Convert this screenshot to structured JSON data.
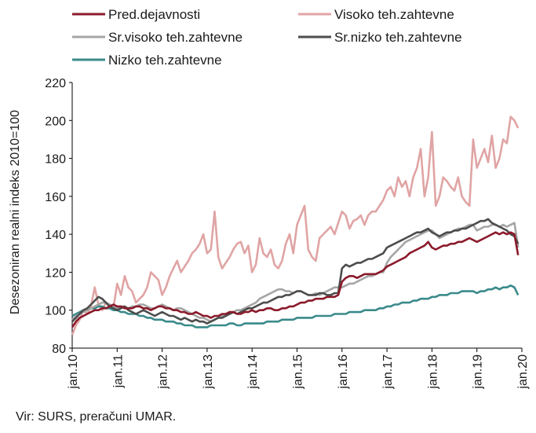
{
  "chart_data": {
    "type": "line",
    "title": "",
    "ylabel": "Desezoniran realni indeks 2010=100",
    "xlabel": "",
    "ylim": [
      80,
      220
    ],
    "yticks": [
      80,
      100,
      120,
      140,
      160,
      180,
      200,
      220
    ],
    "x_tick_labels": [
      "jan.10",
      "jan.11",
      "jan.12",
      "jan.13",
      "jan.14",
      "jan.15",
      "jan.16",
      "jan.17",
      "jan.18",
      "jan.19",
      "jan.20"
    ],
    "x_start": "jan.10",
    "grid": false,
    "legend_position": "top",
    "source": "Vir: SURS, preračuni UMAR.",
    "series": [
      {
        "name": "Pred.dejavnosti",
        "color": "#8b1a2b",
        "values": [
          91,
          94,
          96,
          97,
          98,
          99,
          100,
          100,
          101,
          101,
          102,
          103,
          102,
          102,
          101,
          101,
          101,
          102,
          102,
          101,
          101,
          100,
          101,
          102,
          102,
          101,
          101,
          100,
          100,
          99,
          99,
          98,
          98,
          99,
          98,
          97,
          97,
          96,
          97,
          97,
          98,
          98,
          99,
          99,
          98,
          98,
          99,
          99,
          100,
          99,
          100,
          100,
          101,
          101,
          100,
          100,
          101,
          101,
          102,
          102,
          103,
          104,
          104,
          105,
          105,
          106,
          106,
          106,
          107,
          107,
          107,
          108,
          115,
          117,
          118,
          118,
          117,
          118,
          119,
          119,
          119,
          119,
          120,
          121,
          123,
          124,
          125,
          126,
          127,
          128,
          130,
          131,
          132,
          133,
          134,
          136,
          133,
          132,
          133,
          134,
          134,
          135,
          135,
          136,
          136,
          137,
          138,
          137,
          136,
          137,
          138,
          139,
          140,
          141,
          140,
          141,
          140,
          141,
          140,
          129
        ]
      },
      {
        "name": "Visoko teh.zahtevne",
        "color": "#e0a4a4",
        "values": [
          87,
          92,
          95,
          100,
          98,
          102,
          112,
          103,
          100,
          104,
          102,
          101,
          114,
          108,
          118,
          112,
          110,
          104,
          106,
          108,
          112,
          120,
          118,
          116,
          108,
          112,
          118,
          122,
          126,
          120,
          123,
          126,
          130,
          132,
          135,
          140,
          130,
          132,
          152,
          128,
          122,
          125,
          128,
          132,
          135,
          136,
          130,
          134,
          120,
          124,
          138,
          130,
          128,
          132,
          124,
          122,
          126,
          135,
          140,
          130,
          145,
          150,
          155,
          132,
          128,
          126,
          138,
          140,
          142,
          144,
          140,
          146,
          152,
          150,
          143,
          147,
          148,
          150,
          145,
          150,
          152,
          152,
          155,
          158,
          163,
          165,
          160,
          170,
          165,
          168,
          160,
          170,
          175,
          185,
          160,
          170,
          194,
          155,
          160,
          170,
          168,
          165,
          163,
          170,
          160,
          157,
          155,
          190,
          175,
          180,
          185,
          178,
          192,
          175,
          180,
          190,
          188,
          202,
          200,
          196
        ]
      },
      {
        "name": "Sr.visoko teh.zahtevne",
        "color": "#a6a6a6",
        "values": [
          95,
          97,
          98,
          99,
          100,
          101,
          102,
          103,
          104,
          104,
          103,
          102,
          101,
          102,
          102,
          101,
          102,
          102,
          103,
          103,
          102,
          101,
          101,
          102,
          103,
          102,
          101,
          100,
          101,
          101,
          100,
          99,
          98,
          97,
          96,
          96,
          95,
          94,
          95,
          96,
          97,
          98,
          98,
          99,
          100,
          100,
          101,
          102,
          103,
          104,
          106,
          107,
          108,
          109,
          110,
          111,
          111,
          110,
          110,
          109,
          110,
          110,
          109,
          108,
          108,
          109,
          108,
          109,
          110,
          111,
          112,
          112,
          112,
          113,
          114,
          114,
          115,
          116,
          117,
          118,
          118,
          119,
          120,
          120,
          125,
          128,
          130,
          132,
          134,
          136,
          137,
          138,
          139,
          140,
          141,
          142,
          142,
          140,
          138,
          139,
          140,
          141,
          142,
          143,
          143,
          144,
          145,
          145,
          142,
          143,
          144,
          144,
          145,
          145,
          144,
          145,
          144,
          145,
          146,
          133
        ]
      },
      {
        "name": "Sr.nizko teh.zahtevne",
        "color": "#4d4d4d",
        "values": [
          94,
          96,
          98,
          100,
          101,
          103,
          105,
          107,
          106,
          104,
          102,
          101,
          100,
          101,
          102,
          100,
          99,
          98,
          99,
          100,
          99,
          98,
          97,
          98,
          99,
          98,
          97,
          97,
          96,
          95,
          96,
          95,
          94,
          95,
          94,
          94,
          93,
          94,
          95,
          96,
          96,
          97,
          98,
          99,
          98,
          99,
          100,
          101,
          101,
          102,
          103,
          104,
          104,
          105,
          106,
          107,
          107,
          108,
          108,
          109,
          110,
          110,
          109,
          108,
          108,
          108,
          109,
          109,
          108,
          108,
          109,
          109,
          122,
          124,
          123,
          124,
          125,
          125,
          126,
          127,
          127,
          128,
          129,
          130,
          133,
          134,
          135,
          136,
          137,
          138,
          139,
          140,
          141,
          141,
          142,
          143,
          141,
          140,
          139,
          140,
          141,
          141,
          142,
          142,
          143,
          143,
          144,
          145,
          146,
          147,
          147,
          148,
          146,
          145,
          144,
          143,
          142,
          140,
          139,
          135
        ]
      },
      {
        "name": "Nizko teh.zahtevne",
        "color": "#3a8a8a",
        "values": [
          97,
          98,
          99,
          100,
          100,
          101,
          101,
          102,
          102,
          101,
          101,
          100,
          100,
          99,
          99,
          98,
          98,
          98,
          97,
          97,
          96,
          96,
          95,
          95,
          95,
          94,
          94,
          94,
          93,
          93,
          92,
          92,
          92,
          91,
          91,
          91,
          91,
          92,
          92,
          92,
          92,
          92,
          93,
          93,
          92,
          92,
          93,
          93,
          93,
          93,
          93,
          93,
          94,
          94,
          94,
          94,
          95,
          95,
          95,
          95,
          96,
          96,
          96,
          96,
          96,
          97,
          97,
          97,
          97,
          97,
          98,
          98,
          98,
          98,
          99,
          99,
          99,
          99,
          100,
          100,
          100,
          100,
          101,
          101,
          102,
          102,
          103,
          103,
          104,
          104,
          104,
          105,
          105,
          106,
          106,
          106,
          107,
          107,
          108,
          108,
          108,
          109,
          109,
          109,
          110,
          110,
          110,
          110,
          109,
          110,
          110,
          111,
          111,
          112,
          111,
          112,
          112,
          113,
          112,
          108
        ]
      }
    ]
  }
}
